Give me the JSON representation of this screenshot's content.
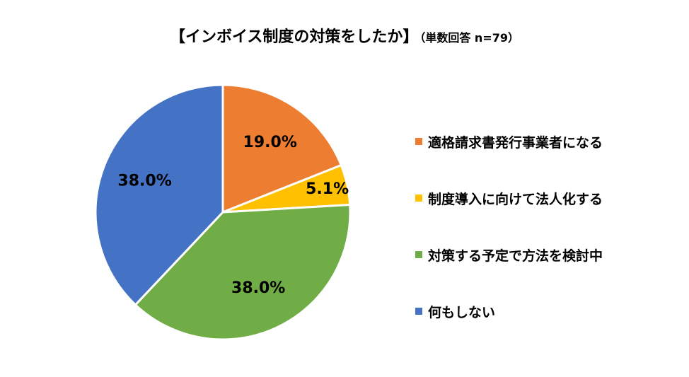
{
  "chart_data": {
    "type": "pie",
    "title": "【インボイス制度の対策をしたか】",
    "subtitle": "（単数回答 n=79）",
    "categories": [
      "適格請求書発行事業者になる",
      "制度導入に向けて法人化する",
      "対策する予定で方法を検討中",
      "何もしない"
    ],
    "values": [
      19.0,
      5.1,
      38.0,
      38.0
    ],
    "labels": [
      "19.0%",
      "5.1%",
      "38.0%",
      "38.0%"
    ],
    "colors": [
      "#ED7D31",
      "#FFC000",
      "#70AD47",
      "#4472C4"
    ],
    "legend_position": "right"
  }
}
